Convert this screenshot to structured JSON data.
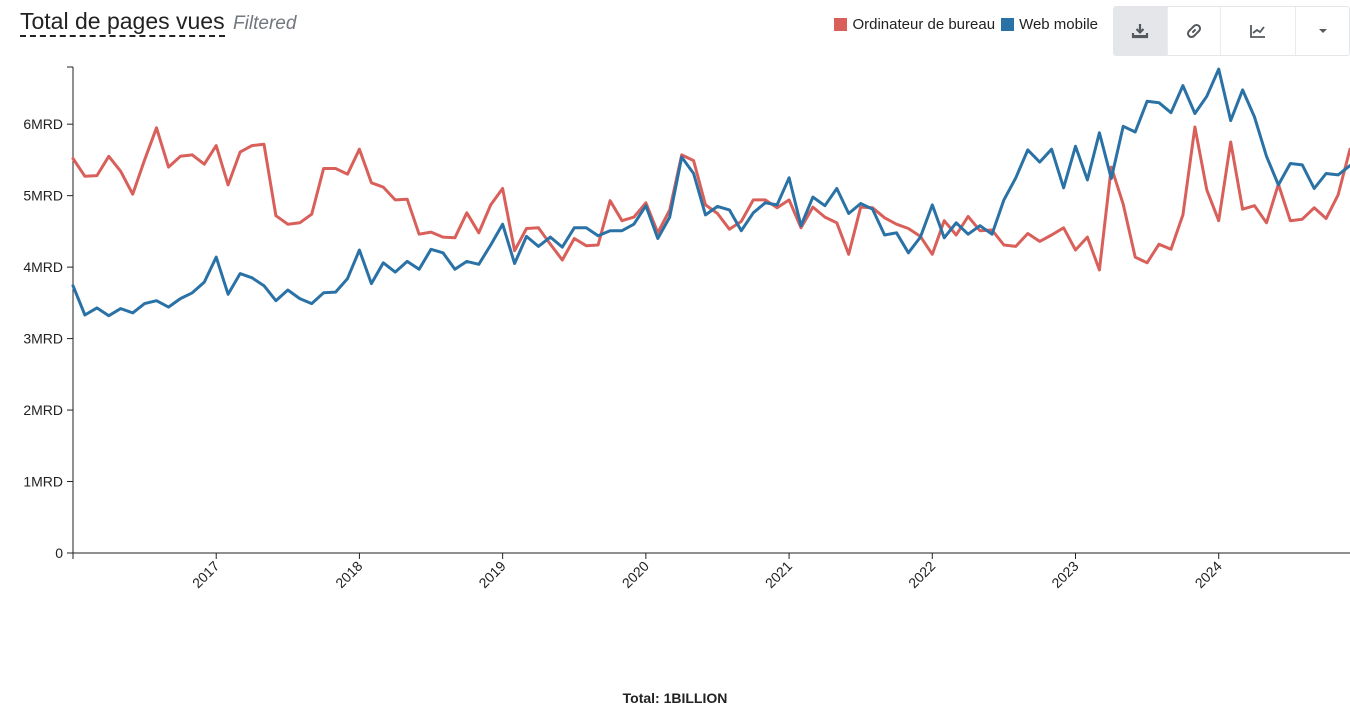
{
  "header": {
    "title": "Total de pages vues",
    "subtitle": "Filtered"
  },
  "toolbar": {
    "icons": [
      "download-icon",
      "link-icon",
      "line-chart-icon",
      "chevron-down-icon"
    ]
  },
  "colors": {
    "desktop": "#d9605a",
    "mobile": "#2a72a6",
    "axis": "#222222"
  },
  "footer": {
    "total": "Total: 1BILLION"
  },
  "chart_data": {
    "type": "line",
    "title": "Total de pages vues",
    "xlabel": "",
    "ylabel": "",
    "x_range": [
      "2016-01",
      "2024-12"
    ],
    "ylim": [
      0,
      6800000000
    ],
    "y_ticks": [
      0,
      1000000000,
      2000000000,
      3000000000,
      4000000000,
      5000000000,
      6000000000
    ],
    "y_tick_labels": [
      "0",
      "1MRD",
      "2MRD",
      "3MRD",
      "4MRD",
      "5MRD",
      "6MRD"
    ],
    "x_ticks": [
      "2017-01",
      "2018-01",
      "2019-01",
      "2020-01",
      "2021-01",
      "2022-01",
      "2023-01",
      "2024-01"
    ],
    "x_tick_labels": [
      "2017",
      "2018",
      "2019",
      "2020",
      "2021",
      "2022",
      "2023",
      "2024"
    ],
    "grid": false,
    "legend_position": "top-right",
    "series": [
      {
        "name": "Ordinateur de bureau",
        "color": "#d9605a",
        "x": [
          "2016-01",
          "2016-02",
          "2016-03",
          "2016-04",
          "2016-05",
          "2016-06",
          "2016-07",
          "2016-08",
          "2016-09",
          "2016-10",
          "2016-11",
          "2016-12",
          "2017-01",
          "2017-02",
          "2017-03",
          "2017-04",
          "2017-05",
          "2017-06",
          "2017-07",
          "2017-08",
          "2017-09",
          "2017-10",
          "2017-11",
          "2017-12",
          "2018-01",
          "2018-02",
          "2018-03",
          "2018-04",
          "2018-05",
          "2018-06",
          "2018-07",
          "2018-08",
          "2018-09",
          "2018-10",
          "2018-11",
          "2018-12",
          "2019-01",
          "2019-02",
          "2019-03",
          "2019-04",
          "2019-05",
          "2019-06",
          "2019-07",
          "2019-08",
          "2019-09",
          "2019-10",
          "2019-11",
          "2019-12",
          "2020-01",
          "2020-02",
          "2020-03",
          "2020-04",
          "2020-05",
          "2020-06",
          "2020-07",
          "2020-08",
          "2020-09",
          "2020-10",
          "2020-11",
          "2020-12",
          "2021-01",
          "2021-02",
          "2021-03",
          "2021-04",
          "2021-05",
          "2021-06",
          "2021-07",
          "2021-08",
          "2021-09",
          "2021-10",
          "2021-11",
          "2021-12",
          "2022-01",
          "2022-02",
          "2022-03",
          "2022-04",
          "2022-05",
          "2022-06",
          "2022-07",
          "2022-08",
          "2022-09",
          "2022-10",
          "2022-11",
          "2022-12",
          "2023-01",
          "2023-02",
          "2023-03",
          "2023-04",
          "2023-05",
          "2023-06",
          "2023-07",
          "2023-08",
          "2023-09",
          "2023-10",
          "2023-11",
          "2023-12",
          "2024-01",
          "2024-02",
          "2024-03",
          "2024-04",
          "2024-05",
          "2024-06",
          "2024-07",
          "2024-08",
          "2024-09",
          "2024-10",
          "2024-11",
          "2024-12"
        ],
        "values": [
          5520000000,
          5270000000,
          5280000000,
          5550000000,
          5340000000,
          5020000000,
          5500000000,
          5950000000,
          5400000000,
          5550000000,
          5570000000,
          5440000000,
          5700000000,
          5150000000,
          5610000000,
          5700000000,
          5720000000,
          4720000000,
          4600000000,
          4620000000,
          4740000000,
          5380000000,
          5380000000,
          5300000000,
          5650000000,
          5180000000,
          5120000000,
          4940000000,
          4950000000,
          4460000000,
          4490000000,
          4420000000,
          4410000000,
          4760000000,
          4480000000,
          4870000000,
          5100000000,
          4230000000,
          4540000000,
          4550000000,
          4320000000,
          4100000000,
          4400000000,
          4300000000,
          4310000000,
          4930000000,
          4650000000,
          4700000000,
          4900000000,
          4480000000,
          4800000000,
          5570000000,
          5490000000,
          4870000000,
          4750000000,
          4530000000,
          4640000000,
          4940000000,
          4940000000,
          4830000000,
          4940000000,
          4550000000,
          4840000000,
          4700000000,
          4620000000,
          4180000000,
          4840000000,
          4830000000,
          4690000000,
          4600000000,
          4540000000,
          4430000000,
          4180000000,
          4650000000,
          4450000000,
          4710000000,
          4510000000,
          4520000000,
          4310000000,
          4290000000,
          4470000000,
          4360000000,
          4450000000,
          4550000000,
          4240000000,
          4420000000,
          3960000000,
          5400000000,
          4880000000,
          4140000000,
          4060000000,
          4320000000,
          4250000000,
          4730000000,
          5960000000,
          5080000000,
          4650000000,
          5750000000,
          4810000000,
          4860000000,
          4620000000,
          5160000000,
          4650000000,
          4670000000,
          4830000000,
          4680000000,
          5010000000,
          5650000000
        ]
      },
      {
        "name": "Web mobile",
        "color": "#2a72a6",
        "x": [
          "2016-01",
          "2016-02",
          "2016-03",
          "2016-04",
          "2016-05",
          "2016-06",
          "2016-07",
          "2016-08",
          "2016-09",
          "2016-10",
          "2016-11",
          "2016-12",
          "2017-01",
          "2017-02",
          "2017-03",
          "2017-04",
          "2017-05",
          "2017-06",
          "2017-07",
          "2017-08",
          "2017-09",
          "2017-10",
          "2017-11",
          "2017-12",
          "2018-01",
          "2018-02",
          "2018-03",
          "2018-04",
          "2018-05",
          "2018-06",
          "2018-07",
          "2018-08",
          "2018-09",
          "2018-10",
          "2018-11",
          "2018-12",
          "2019-01",
          "2019-02",
          "2019-03",
          "2019-04",
          "2019-05",
          "2019-06",
          "2019-07",
          "2019-08",
          "2019-09",
          "2019-10",
          "2019-11",
          "2019-12",
          "2020-01",
          "2020-02",
          "2020-03",
          "2020-04",
          "2020-05",
          "2020-06",
          "2020-07",
          "2020-08",
          "2020-09",
          "2020-10",
          "2020-11",
          "2020-12",
          "2021-01",
          "2021-02",
          "2021-03",
          "2021-04",
          "2021-05",
          "2021-06",
          "2021-07",
          "2021-08",
          "2021-09",
          "2021-10",
          "2021-11",
          "2021-12",
          "2022-01",
          "2022-02",
          "2022-03",
          "2022-04",
          "2022-05",
          "2022-06",
          "2022-07",
          "2022-08",
          "2022-09",
          "2022-10",
          "2022-11",
          "2022-12",
          "2023-01",
          "2023-02",
          "2023-03",
          "2023-04",
          "2023-05",
          "2023-06",
          "2023-07",
          "2023-08",
          "2023-09",
          "2023-10",
          "2023-11",
          "2023-12",
          "2024-01",
          "2024-02",
          "2024-03",
          "2024-04",
          "2024-05",
          "2024-06",
          "2024-07",
          "2024-08",
          "2024-09",
          "2024-10",
          "2024-11",
          "2024-12"
        ],
        "values": [
          3740000000,
          3330000000,
          3430000000,
          3320000000,
          3420000000,
          3360000000,
          3490000000,
          3530000000,
          3440000000,
          3560000000,
          3640000000,
          3790000000,
          4140000000,
          3620000000,
          3910000000,
          3850000000,
          3740000000,
          3530000000,
          3680000000,
          3560000000,
          3490000000,
          3640000000,
          3650000000,
          3840000000,
          4240000000,
          3770000000,
          4060000000,
          3930000000,
          4080000000,
          3970000000,
          4250000000,
          4200000000,
          3970000000,
          4080000000,
          4040000000,
          4310000000,
          4600000000,
          4050000000,
          4430000000,
          4290000000,
          4420000000,
          4280000000,
          4550000000,
          4550000000,
          4440000000,
          4510000000,
          4510000000,
          4600000000,
          4860000000,
          4400000000,
          4700000000,
          5540000000,
          5310000000,
          4730000000,
          4850000000,
          4800000000,
          4510000000,
          4760000000,
          4900000000,
          4870000000,
          5250000000,
          4580000000,
          4980000000,
          4860000000,
          5100000000,
          4750000000,
          4890000000,
          4810000000,
          4450000000,
          4480000000,
          4200000000,
          4420000000,
          4870000000,
          4410000000,
          4620000000,
          4460000000,
          4580000000,
          4460000000,
          4940000000,
          5250000000,
          5640000000,
          5470000000,
          5650000000,
          5110000000,
          5690000000,
          5220000000,
          5880000000,
          5240000000,
          5970000000,
          5890000000,
          6320000000,
          6300000000,
          6160000000,
          6540000000,
          6150000000,
          6390000000,
          6770000000,
          6050000000,
          6480000000,
          6100000000,
          5550000000,
          5150000000,
          5450000000,
          5430000000,
          5100000000,
          5310000000,
          5290000000,
          5420000000
        ]
      }
    ]
  }
}
